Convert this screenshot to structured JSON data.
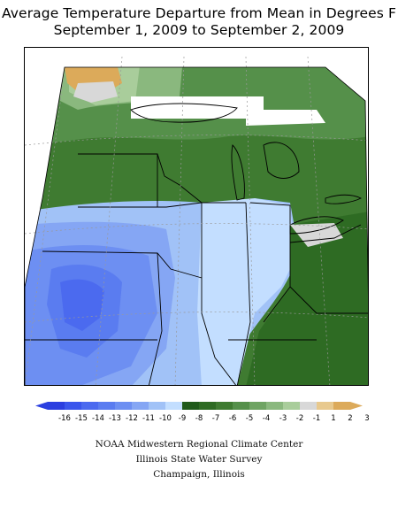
{
  "title": {
    "line1": "Average Temperature Departure from Mean in Degrees F",
    "line2": "September 1, 2009 to September 2, 2009"
  },
  "legend": {
    "labels": [
      "-16",
      "-15",
      "-14",
      "-13",
      "-12",
      "-11",
      "-10",
      "-9",
      "-8",
      "-7",
      "-6",
      "-5",
      "-4",
      "-3",
      "-2",
      "-1",
      "1",
      "2",
      "3"
    ],
    "colors": [
      "#2b3fe0",
      "#3a56ec",
      "#4b6aef",
      "#5a7cf0",
      "#6d8ff2",
      "#85a6f4",
      "#a1c2f7",
      "#c3deff",
      "#1f5a1a",
      "#2e6b23",
      "#3f7b31",
      "#55904a",
      "#6fa463",
      "#8ab87e",
      "#a9cd9b",
      "#d8d8d8",
      "#e8c98e",
      "#dcaa5a"
    ],
    "low_arrow_color": "#2b3fe0",
    "high_arrow_color": "#dcaa5a"
  },
  "credits": {
    "line1": "NOAA Midwestern Regional Climate Center",
    "line2": "Illinois State Water Survey",
    "line3": "Champaign, Illinois"
  },
  "map": {
    "zones": [
      {
        "name": "minnesota-north-warm",
        "value": 2
      },
      {
        "name": "upper-midwest-near-normal",
        "value": -3
      },
      {
        "name": "great-lakes-cool",
        "value": -6
      },
      {
        "name": "ohio-valley-cool",
        "value": -7
      },
      {
        "name": "plains-cold",
        "value": -12
      },
      {
        "name": "iowa-missouri-coldest",
        "value": -14
      },
      {
        "name": "illinois-indiana-cold",
        "value": -9
      },
      {
        "name": "ontario-no-data",
        "value": null
      }
    ]
  }
}
